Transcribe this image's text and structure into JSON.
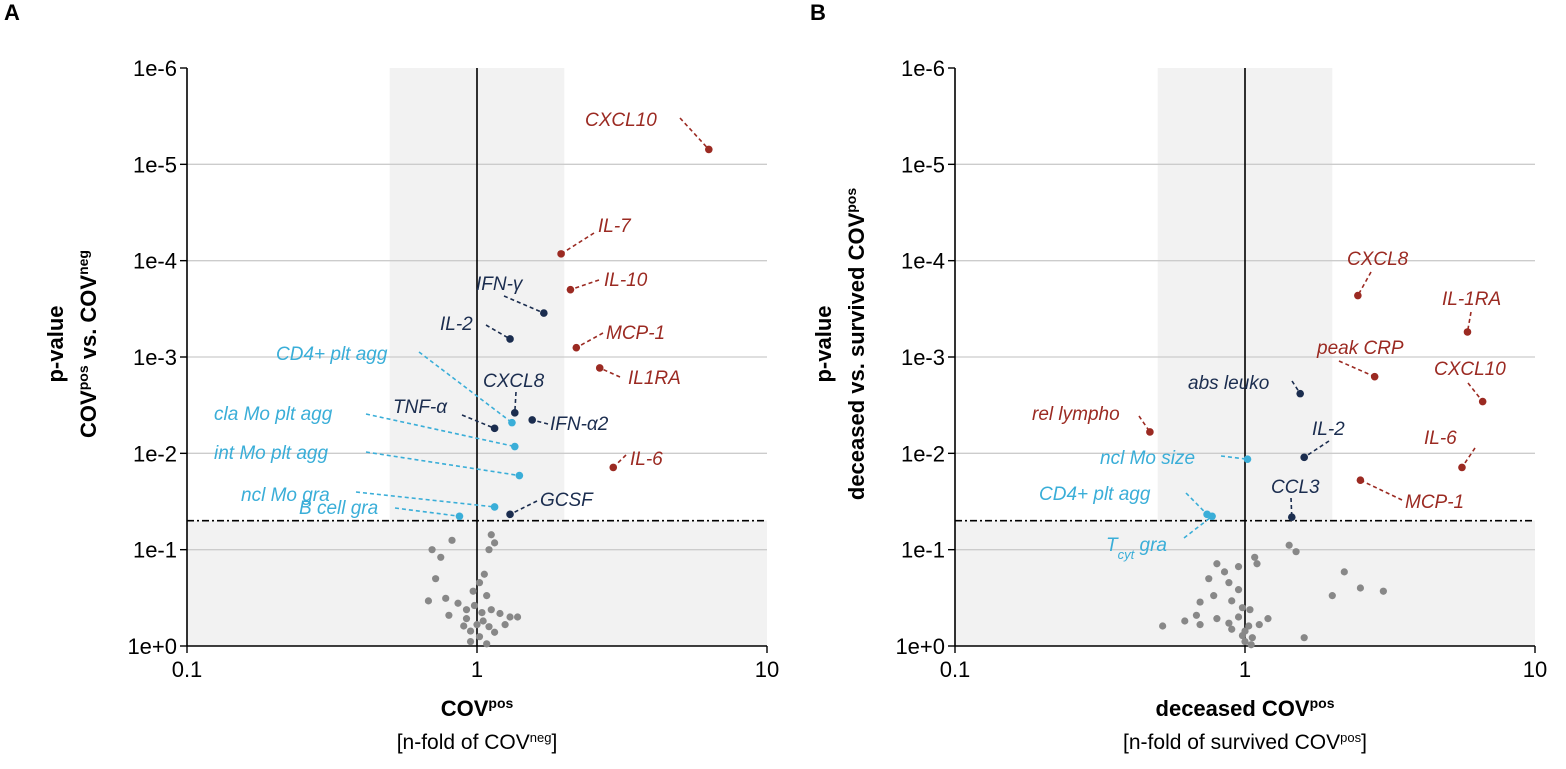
{
  "colors": {
    "red": "#9b2a22",
    "navy": "#1b2d4f",
    "cyan": "#3aaed8",
    "gray": "#888888",
    "shade": "#f2f2f2",
    "grid": "#cccccc"
  },
  "chart_data": [
    {
      "panel": "A",
      "type": "scatter",
      "title": "",
      "ylabel_line1": "p-value",
      "ylabel_line2": {
        "a": "COV",
        "a_sup": "pos",
        "b": " vs. COV",
        "b_sup": "neg"
      },
      "xlabel_line1": {
        "a": "COV",
        "a_sup": "pos"
      },
      "xlabel_line2": {
        "a": "[n-fold of COV",
        "a_sup": "neg",
        "b": "]"
      },
      "x_scale": "log",
      "xlim": [
        0.1,
        10
      ],
      "x_ticks": [
        0.1,
        1,
        10
      ],
      "x_tick_labels": [
        "0.1",
        "1",
        "10"
      ],
      "y_scale": "-log10",
      "ylim": [
        1,
        1e-06
      ],
      "y_ticks": [
        1,
        0.1,
        0.01,
        0.001,
        0.0001,
        1e-05,
        1e-06
      ],
      "y_tick_labels": [
        "1e+0",
        "1e-1",
        "1e-2",
        "1e-3",
        "1e-4",
        "1e-5",
        "1e-6"
      ],
      "significance_threshold_p": 0.05,
      "shaded_x_range": [
        0.5,
        2
      ],
      "labeled_points": [
        {
          "label": "CXCL10",
          "x": 6.3,
          "p": 7e-06,
          "group": "red"
        },
        {
          "label": "IL-7",
          "x": 1.95,
          "p": 8.5e-05,
          "group": "red"
        },
        {
          "label": "IL-10",
          "x": 2.1,
          "p": 0.0002,
          "group": "red"
        },
        {
          "label": "MCP-1",
          "x": 2.2,
          "p": 0.0008,
          "group": "red"
        },
        {
          "label": "IL1RA",
          "x": 2.65,
          "p": 0.0013,
          "group": "red"
        },
        {
          "label": "IL-6",
          "x": 2.95,
          "p": 0.014,
          "group": "red"
        },
        {
          "label": "IFN-γ",
          "x": 1.7,
          "p": 0.00035,
          "group": "navy"
        },
        {
          "label": "IL-2",
          "x": 1.3,
          "p": 0.00065,
          "group": "navy"
        },
        {
          "label": "CXCL8",
          "x": 1.35,
          "p": 0.0038,
          "group": "navy"
        },
        {
          "label": "IFN-α2",
          "x": 1.55,
          "p": 0.0045,
          "group": "navy"
        },
        {
          "label": "TNF-α",
          "x": 1.15,
          "p": 0.0055,
          "group": "navy"
        },
        {
          "label": "GCSF",
          "x": 1.3,
          "p": 0.043,
          "group": "navy"
        },
        {
          "label": "CD4+ plt agg",
          "x": 1.32,
          "p": 0.0048,
          "group": "cyan"
        },
        {
          "label": "cla Mo plt agg",
          "x": 1.35,
          "p": 0.0085,
          "group": "cyan"
        },
        {
          "label": "int Mo plt agg",
          "x": 1.4,
          "p": 0.017,
          "group": "cyan"
        },
        {
          "label": "ncl Mo gra",
          "x": 1.15,
          "p": 0.036,
          "group": "cyan"
        },
        {
          "label": "B cell gra",
          "x": 0.87,
          "p": 0.045,
          "group": "cyan"
        }
      ],
      "nonsignificant_points": [
        [
          0.7,
          0.1
        ],
        [
          0.75,
          0.12
        ],
        [
          0.82,
          0.08
        ],
        [
          1.12,
          0.07
        ],
        [
          1.1,
          0.1
        ],
        [
          1.15,
          0.085
        ],
        [
          0.72,
          0.2
        ],
        [
          0.78,
          0.32
        ],
        [
          0.86,
          0.36
        ],
        [
          0.68,
          0.34
        ],
        [
          0.8,
          0.48
        ],
        [
          1.02,
          0.22
        ],
        [
          0.97,
          0.27
        ],
        [
          1.06,
          0.18
        ],
        [
          1.08,
          0.3
        ],
        [
          0.92,
          0.42
        ],
        [
          0.98,
          0.38
        ],
        [
          1.04,
          0.45
        ],
        [
          1.12,
          0.42
        ],
        [
          1.2,
          0.46
        ],
        [
          1.3,
          0.5
        ],
        [
          1.05,
          0.55
        ],
        [
          0.92,
          0.52
        ],
        [
          1.0,
          0.6
        ],
        [
          1.1,
          0.63
        ],
        [
          0.95,
          0.7
        ],
        [
          1.15,
          0.72
        ],
        [
          1.02,
          0.8
        ],
        [
          0.95,
          0.9
        ],
        [
          1.08,
          0.95
        ],
        [
          1.25,
          0.6
        ],
        [
          1.38,
          0.5
        ],
        [
          0.9,
          0.62
        ]
      ]
    },
    {
      "panel": "B",
      "type": "scatter",
      "title": "",
      "ylabel_line1": "p-value",
      "ylabel_line2": {
        "a": "deceased vs. survived COV",
        "a_sup": "pos"
      },
      "xlabel_line1": {
        "a": "deceased COV",
        "a_sup": "pos"
      },
      "xlabel_line2": {
        "a": "[n-fold of survived COV",
        "a_sup": "pos",
        "b": "]"
      },
      "x_scale": "log",
      "xlim": [
        0.1,
        10
      ],
      "x_ticks": [
        0.1,
        1,
        10
      ],
      "x_tick_labels": [
        "0.1",
        "1",
        "10"
      ],
      "y_scale": "-log10",
      "ylim": [
        1,
        1e-06
      ],
      "y_ticks": [
        1,
        0.1,
        0.01,
        0.001,
        0.0001,
        1e-05,
        1e-06
      ],
      "y_tick_labels": [
        "1e+0",
        "1e-1",
        "1e-2",
        "1e-3",
        "1e-4",
        "1e-5",
        "1e-6"
      ],
      "significance_threshold_p": 0.05,
      "shaded_x_range": [
        0.5,
        2
      ],
      "labeled_points": [
        {
          "label": "CXCL8",
          "x": 2.45,
          "p": 0.00023,
          "group": "red"
        },
        {
          "label": "IL-1RA",
          "x": 5.85,
          "p": 0.00055,
          "group": "red"
        },
        {
          "label": "peak CRP",
          "x": 2.8,
          "p": 0.0016,
          "group": "red"
        },
        {
          "label": "CXCL10",
          "x": 6.6,
          "p": 0.0029,
          "group": "red"
        },
        {
          "label": "rel lympho",
          "x": 0.47,
          "p": 0.006,
          "group": "red"
        },
        {
          "label": "IL-6",
          "x": 5.6,
          "p": 0.014,
          "group": "red"
        },
        {
          "label": "MCP-1",
          "x": 2.5,
          "p": 0.019,
          "group": "red"
        },
        {
          "label": "abs leuko",
          "x": 1.55,
          "p": 0.0024,
          "group": "navy"
        },
        {
          "label": "IL-2",
          "x": 1.6,
          "p": 0.011,
          "group": "navy"
        },
        {
          "label": "CCL3",
          "x": 1.45,
          "p": 0.046,
          "group": "navy"
        },
        {
          "label": "ncl Mo size",
          "x": 1.02,
          "p": 0.0115,
          "group": "cyan"
        },
        {
          "label": "CD4+ plt agg",
          "x": 0.74,
          "p": 0.043,
          "group": "cyan"
        },
        {
          "label": "Tcyt gra",
          "x": 0.77,
          "p": 0.045,
          "group": "cyan",
          "label_main": "T",
          "label_sub": "cyt",
          "label_rest": " gra"
        }
      ],
      "nonsignificant_points": [
        [
          1.42,
          0.09
        ],
        [
          1.5,
          0.105
        ],
        [
          1.08,
          0.12
        ],
        [
          1.1,
          0.14
        ],
        [
          0.95,
          0.15
        ],
        [
          2.2,
          0.17
        ],
        [
          2.5,
          0.25
        ],
        [
          3.0,
          0.27
        ],
        [
          2.0,
          0.3
        ],
        [
          0.8,
          0.14
        ],
        [
          0.85,
          0.17
        ],
        [
          0.75,
          0.2
        ],
        [
          0.88,
          0.22
        ],
        [
          0.95,
          0.26
        ],
        [
          0.78,
          0.3
        ],
        [
          0.7,
          0.35
        ],
        [
          0.9,
          0.34
        ],
        [
          0.98,
          0.4
        ],
        [
          1.04,
          0.42
        ],
        [
          0.62,
          0.55
        ],
        [
          0.68,
          0.48
        ],
        [
          0.8,
          0.52
        ],
        [
          0.88,
          0.58
        ],
        [
          0.95,
          0.5
        ],
        [
          1.03,
          0.62
        ],
        [
          1.12,
          0.6
        ],
        [
          1.2,
          0.52
        ],
        [
          1.0,
          0.7
        ],
        [
          0.98,
          0.78
        ],
        [
          1.06,
          0.82
        ],
        [
          1.0,
          0.9
        ],
        [
          0.52,
          0.62
        ],
        [
          0.7,
          0.6
        ],
        [
          1.6,
          0.82
        ],
        [
          0.9,
          0.67
        ],
        [
          1.05,
          0.97
        ]
      ]
    }
  ]
}
